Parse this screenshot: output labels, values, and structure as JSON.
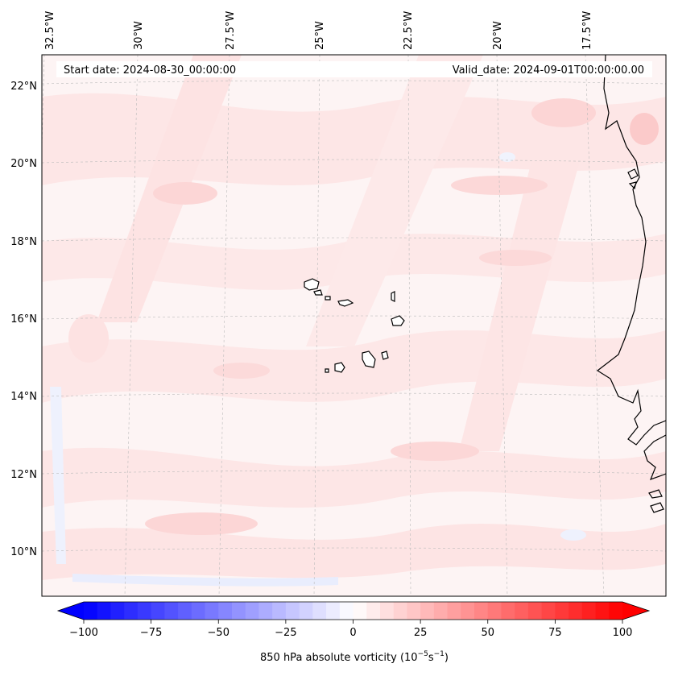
{
  "map": {
    "start_label": "Start date: 2024-08-30_00:00:00",
    "valid_label": "Valid_date: 2024-09-01T00:00:00.00",
    "lon_labels": [
      "32.5°W",
      "30°W",
      "27.5°W",
      "25°W",
      "22.5°W",
      "20°W",
      "17.5°W"
    ],
    "lat_labels": [
      "22°N",
      "20°N",
      "18°N",
      "16°N",
      "14°N",
      "12°N",
      "10°N"
    ],
    "gridlines": true,
    "colormap": "bwr",
    "field_colors": {
      "light_red": "#fde8e8",
      "mid_red": "#fbd3d3",
      "pale": "#fdf5f5",
      "light_blue": "#eef1fd",
      "coast": "#000000"
    }
  },
  "colorbar": {
    "ticks": [
      "−100",
      "−75",
      "−50",
      "−25",
      "0",
      "25",
      "50",
      "75",
      "100"
    ],
    "min": -100,
    "max": 100,
    "extend": "both",
    "label": "850 hPa absolute vorticity (10",
    "label_exp1": "−5",
    "label_mid": "s",
    "label_exp2": "−1",
    "label_end": ")"
  }
}
